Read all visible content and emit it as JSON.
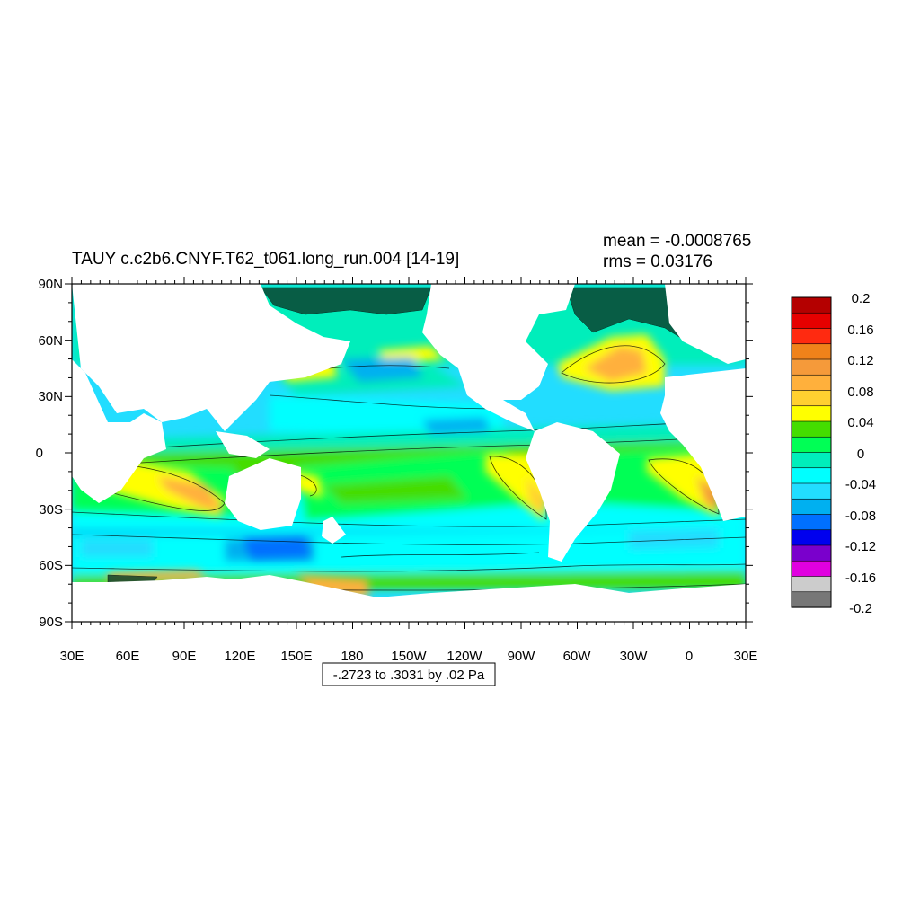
{
  "title": "TAUY c.c2b6.CNYF.T62_t061.long_run.004 [14-19]",
  "stats": {
    "mean_text": "mean = -0.0008765",
    "rms_text": "rms = 0.03176"
  },
  "contour_info": "-.2723 to .3031 by .02 Pa",
  "map": {
    "projection": "cylindrical-equidistant",
    "lon_range": [
      30,
      390
    ],
    "lat_range": [
      -90,
      90
    ],
    "lon_ticks": [
      "30E",
      "60E",
      "90E",
      "120E",
      "150E",
      "180",
      "150W",
      "120W",
      "90W",
      "60W",
      "30W",
      "0",
      "30E"
    ],
    "lat_ticks": [
      "90N",
      "60N",
      "30N",
      "0",
      "30S",
      "60S",
      "90S"
    ]
  },
  "colorbar": {
    "labels": [
      "0.2",
      "0.16",
      "0.12",
      "0.08",
      "0.04",
      "0",
      "-0.04",
      "-0.08",
      "-0.12",
      "-0.16",
      "-0.2"
    ],
    "colors": [
      "#b40000",
      "#e60000",
      "#ff2a10",
      "#f0821a",
      "#f59a3a",
      "#ffb03c",
      "#ffd030",
      "#ffff00",
      "#44dd00",
      "#00ff55",
      "#00eebb",
      "#00ffff",
      "#22ddff",
      "#00b0f0",
      "#0070ff",
      "#0000ee",
      "#7a00cc",
      "#e000e0",
      "#cccccc",
      "#777777"
    ]
  },
  "colors": {
    "ocean_base": "#22ddff",
    "land": "#ffffff"
  }
}
